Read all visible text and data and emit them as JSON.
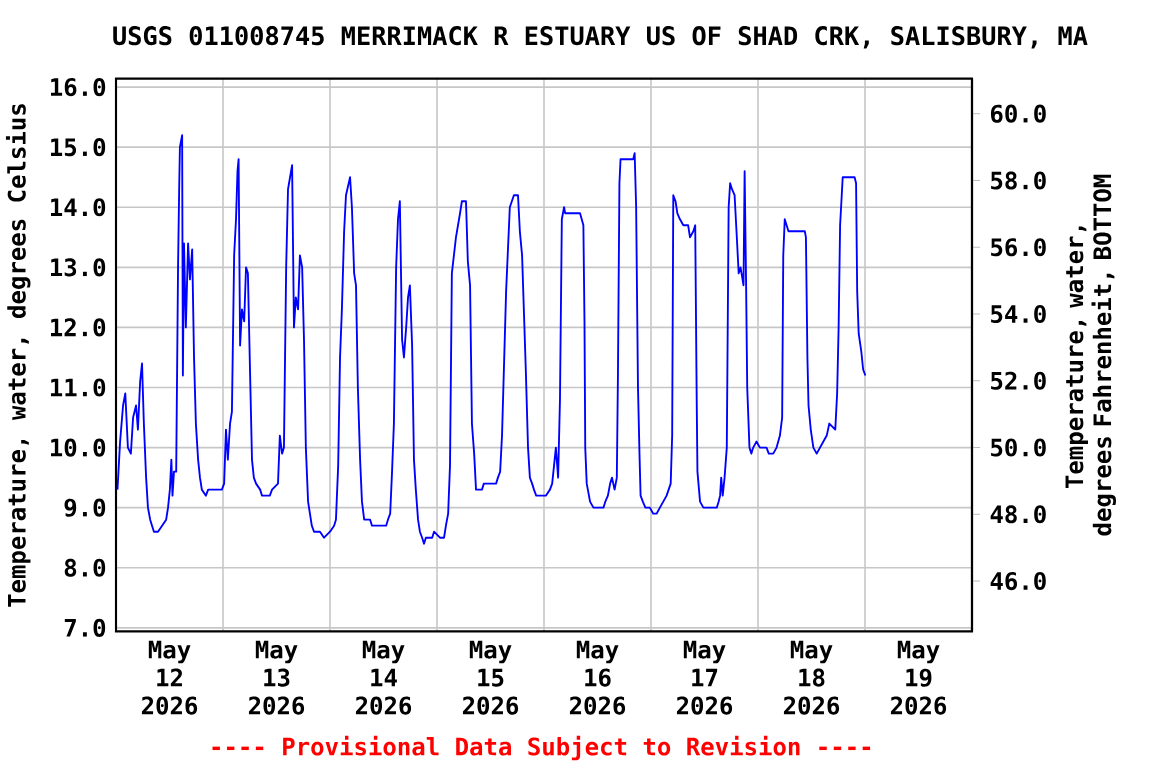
{
  "chart_data": {
    "type": "line",
    "title": "USGS 011008745 MERRIMACK R ESTUARY US OF SHAD CRK, SALISBURY, MA",
    "ylabel": "Temperature, water, degrees Celsius",
    "y2label": "Temperature, water, degrees Fahrenheit, BOTTOM",
    "annotations": [
      "---- Provisional Data Subject to Revision ----"
    ],
    "color": "#0000ff",
    "line_style": "solid",
    "grid": true,
    "xlim": [
      "2026-05-12T00:00",
      "2026-05-20T00:00"
    ],
    "xticks": [
      {
        "value": "2026-05-12T12:00",
        "label": "May 12 2026"
      },
      {
        "value": "2026-05-13T12:00",
        "label": "May 13 2026"
      },
      {
        "value": "2026-05-14T12:00",
        "label": "May 14 2026"
      },
      {
        "value": "2026-05-15T12:00",
        "label": "May 15 2026"
      },
      {
        "value": "2026-05-16T12:00",
        "label": "May 16 2026"
      },
      {
        "value": "2026-05-17T12:00",
        "label": "May 17 2026"
      },
      {
        "value": "2026-05-18T12:00",
        "label": "May 18 2026"
      },
      {
        "value": "2026-05-19T12:00",
        "label": "May 19 2026"
      },
      {
        "value": "2026-05-13T00:00",
        "label": null
      },
      {
        "value": "2026-05-14T00:00",
        "label": null
      },
      {
        "value": "2026-05-15T00:00",
        "label": null
      },
      {
        "value": "2026-05-16T00:00",
        "label": null
      },
      {
        "value": "2026-05-17T00:00",
        "label": null
      },
      {
        "value": "2026-05-18T00:00",
        "label": null
      },
      {
        "value": "2026-05-19T00:00",
        "label": null
      }
    ],
    "ylim": [
      6.94,
      16.14
    ],
    "yticks": [
      {
        "value": 7,
        "label": "7.0"
      },
      {
        "value": 8,
        "label": "8.0"
      },
      {
        "value": 9,
        "label": "9.0"
      },
      {
        "value": 10,
        "label": "10.0"
      },
      {
        "value": 11,
        "label": "11.0"
      },
      {
        "value": 12,
        "label": "12.0"
      },
      {
        "value": 13,
        "label": "13.0"
      },
      {
        "value": 14,
        "label": "14.0"
      },
      {
        "value": 15,
        "label": "15.0"
      },
      {
        "value": 16,
        "label": "16.0"
      }
    ],
    "y2lim": [
      44.49,
      61.05
    ],
    "y2ticks": [
      {
        "value": 46,
        "label": "46.0"
      },
      {
        "value": 48,
        "label": "48.0"
      },
      {
        "value": 50,
        "label": "50.0"
      },
      {
        "value": 52,
        "label": "52.0"
      },
      {
        "value": 54,
        "label": "54.0"
      },
      {
        "value": 56,
        "label": "56.0"
      },
      {
        "value": 58,
        "label": "58.0"
      },
      {
        "value": 60,
        "label": "60.0"
      }
    ],
    "x": [
      "2026-05-12T00:20",
      "2026-05-12T00:55",
      "2026-05-12T01:35",
      "2026-05-12T02:05",
      "2026-05-12T02:40",
      "2026-05-12T03:20",
      "2026-05-12T03:50",
      "2026-05-12T04:30",
      "2026-05-12T04:55",
      "2026-05-12T05:25",
      "2026-05-12T05:50",
      "2026-05-12T06:15",
      "2026-05-12T06:45",
      "2026-05-12T07:10",
      "2026-05-12T07:40",
      "2026-05-12T08:05",
      "2026-05-12T08:30",
      "2026-05-12T09:25",
      "2026-05-12T10:20",
      "2026-05-12T11:15",
      "2026-05-12T11:40",
      "2026-05-12T12:05",
      "2026-05-12T12:25",
      "2026-05-12T12:40",
      "2026-05-12T13:00",
      "2026-05-12T13:30",
      "2026-05-12T13:55",
      "2026-05-12T14:10",
      "2026-05-12T14:20",
      "2026-05-12T14:50",
      "2026-05-12T15:00",
      "2026-05-12T15:15",
      "2026-05-12T15:40",
      "2026-05-12T16:10",
      "2026-05-12T16:35",
      "2026-05-12T17:05",
      "2026-05-12T17:30",
      "2026-05-12T17:55",
      "2026-05-12T18:25",
      "2026-05-12T18:50",
      "2026-05-12T19:15",
      "2026-05-12T20:10",
      "2026-05-12T20:40",
      "2026-05-12T23:45",
      "2026-05-13T00:15",
      "2026-05-13T00:40",
      "2026-05-13T01:05",
      "2026-05-13T01:35",
      "2026-05-13T02:00",
      "2026-05-13T02:30",
      "2026-05-13T02:55",
      "2026-05-13T03:15",
      "2026-05-13T03:30",
      "2026-05-13T03:50",
      "2026-05-13T04:15",
      "2026-05-13T04:45",
      "2026-05-13T05:10",
      "2026-05-13T05:35",
      "2026-05-13T06:05",
      "2026-05-13T06:30",
      "2026-05-13T06:55",
      "2026-05-13T07:25",
      "2026-05-13T08:20",
      "2026-05-13T08:45",
      "2026-05-13T10:30",
      "2026-05-13T11:00",
      "2026-05-13T12:20",
      "2026-05-13T12:45",
      "2026-05-13T13:15",
      "2026-05-13T13:40",
      "2026-05-13T14:10",
      "2026-05-13T14:35",
      "2026-05-13T15:30",
      "2026-05-13T15:55",
      "2026-05-13T16:20",
      "2026-05-13T16:50",
      "2026-05-13T17:15",
      "2026-05-13T17:45",
      "2026-05-13T18:10",
      "2026-05-13T18:35",
      "2026-05-13T19:05",
      "2026-05-13T19:30",
      "2026-05-13T19:55",
      "2026-05-13T20:25",
      "2026-05-13T21:45",
      "2026-05-13T22:40",
      "2026-05-14T00:00",
      "2026-05-14T00:55",
      "2026-05-14T01:20",
      "2026-05-14T01:50",
      "2026-05-14T02:15",
      "2026-05-14T02:40",
      "2026-05-14T03:10",
      "2026-05-14T03:35",
      "2026-05-14T04:30",
      "2026-05-14T04:55",
      "2026-05-14T05:25",
      "2026-05-14T05:50",
      "2026-05-14T06:15",
      "2026-05-14T06:45",
      "2026-05-14T07:10",
      "2026-05-14T07:40",
      "2026-05-14T09:00",
      "2026-05-14T09:25",
      "2026-05-14T12:35",
      "2026-05-14T13:00",
      "2026-05-14T13:30",
      "2026-05-14T13:55",
      "2026-05-14T14:20",
      "2026-05-14T14:50",
      "2026-05-14T15:15",
      "2026-05-14T15:40",
      "2026-05-14T16:10",
      "2026-05-14T16:35",
      "2026-05-14T17:05",
      "2026-05-14T17:30",
      "2026-05-14T17:55",
      "2026-05-14T18:25",
      "2026-05-14T18:50",
      "2026-05-14T19:15",
      "2026-05-14T19:45",
      "2026-05-14T20:10",
      "2026-05-14T20:40",
      "2026-05-14T21:05",
      "2026-05-14T21:30",
      "2026-05-14T22:55",
      "2026-05-14T23:20",
      "2026-05-15T00:40",
      "2026-05-15T01:35",
      "2026-05-15T02:00",
      "2026-05-15T02:30",
      "2026-05-15T02:55",
      "2026-05-15T03:20",
      "2026-05-15T04:15",
      "2026-05-15T05:10",
      "2026-05-15T05:35",
      "2026-05-15T06:30",
      "2026-05-15T06:55",
      "2026-05-15T07:25",
      "2026-05-15T07:50",
      "2026-05-15T08:20",
      "2026-05-15T08:45",
      "2026-05-15T10:05",
      "2026-05-15T10:30",
      "2026-05-15T13:15",
      "2026-05-15T13:40",
      "2026-05-15T14:10",
      "2026-05-15T14:35",
      "2026-05-15T15:30",
      "2026-05-15T16:20",
      "2026-05-15T17:15",
      "2026-05-15T18:10",
      "2026-05-15T18:35",
      "2026-05-15T19:05",
      "2026-05-15T19:55",
      "2026-05-15T20:25",
      "2026-05-15T20:50",
      "2026-05-15T21:20",
      "2026-05-15T21:45",
      "2026-05-15T22:15",
      "2026-05-16T00:25",
      "2026-05-16T01:20",
      "2026-05-16T01:50",
      "2026-05-16T02:15",
      "2026-05-16T02:40",
      "2026-05-16T03:10",
      "2026-05-16T03:35",
      "2026-05-16T04:00",
      "2026-05-16T04:30",
      "2026-05-16T04:45",
      "2026-05-16T08:05",
      "2026-05-16T08:50",
      "2026-05-16T09:05",
      "2026-05-16T09:15",
      "2026-05-16T09:35",
      "2026-05-16T10:20",
      "2026-05-16T11:05",
      "2026-05-16T13:20",
      "2026-05-16T13:45",
      "2026-05-16T14:20",
      "2026-05-16T14:50",
      "2026-05-16T15:15",
      "2026-05-16T15:50",
      "2026-05-16T16:20",
      "2026-05-16T16:35",
      "2026-05-16T16:55",
      "2026-05-16T17:10",
      "2026-05-16T20:00",
      "2026-05-16T20:20",
      "2026-05-16T20:40",
      "2026-05-16T21:05",
      "2026-05-16T21:25",
      "2026-05-16T21:40",
      "2026-05-16T22:10",
      "2026-05-16T22:45",
      "2026-05-16T23:45",
      "2026-05-17T00:30",
      "2026-05-17T01:15",
      "2026-05-17T02:00",
      "2026-05-17T02:45",
      "2026-05-17T03:30",
      "2026-05-17T04:25",
      "2026-05-17T04:45",
      "2026-05-17T05:00",
      "2026-05-17T05:30",
      "2026-05-17T05:55",
      "2026-05-17T06:30",
      "2026-05-17T07:15",
      "2026-05-17T08:20",
      "2026-05-17T08:45",
      "2026-05-17T09:30",
      "2026-05-17T09:55",
      "2026-05-17T10:15",
      "2026-05-17T10:25",
      "2026-05-17T11:00",
      "2026-05-17T11:45",
      "2026-05-17T14:45",
      "2026-05-17T15:10",
      "2026-05-17T15:30",
      "2026-05-17T15:45",
      "2026-05-17T16:05",
      "2026-05-17T16:30",
      "2026-05-17T17:00",
      "2026-05-17T17:25",
      "2026-05-17T17:45",
      "2026-05-17T18:10",
      "2026-05-17T18:45",
      "2026-05-17T19:15",
      "2026-05-17T19:40",
      "2026-05-17T20:05",
      "2026-05-17T20:45",
      "2026-05-17T21:00",
      "2026-05-17T21:20",
      "2026-05-17T21:35",
      "2026-05-17T22:05",
      "2026-05-17T22:30",
      "2026-05-17T22:55",
      "2026-05-17T23:40",
      "2026-05-18T00:25",
      "2026-05-18T01:55",
      "2026-05-18T02:25",
      "2026-05-18T03:25",
      "2026-05-18T04:10",
      "2026-05-18T04:55",
      "2026-05-18T05:25",
      "2026-05-18T05:40",
      "2026-05-18T06:00",
      "2026-05-18T06:25",
      "2026-05-18T06:50",
      "2026-05-18T10:30",
      "2026-05-18T10:45",
      "2026-05-18T11:05",
      "2026-05-18T11:20",
      "2026-05-18T11:50",
      "2026-05-18T12:25",
      "2026-05-18T13:10",
      "2026-05-18T13:55",
      "2026-05-18T14:40",
      "2026-05-18T15:25",
      "2026-05-18T16:00",
      "2026-05-18T17:20",
      "2026-05-18T17:45",
      "2026-05-18T18:05",
      "2026-05-18T18:25",
      "2026-05-18T19:00",
      "2026-05-18T21:40",
      "2026-05-18T22:00",
      "2026-05-18T22:15",
      "2026-05-18T22:35",
      "2026-05-18T23:10",
      "2026-05-18T23:35",
      "2026-05-19T00:05"
    ],
    "values": [
      9.3,
      10.1,
      10.7,
      10.9,
      10.0,
      9.9,
      10.5,
      10.7,
      10.3,
      11.1,
      11.4,
      10.4,
      9.5,
      9.0,
      8.8,
      8.7,
      8.6,
      8.6,
      8.7,
      8.8,
      9.0,
      9.3,
      9.8,
      9.2,
      9.6,
      9.6,
      13.0,
      14.3,
      15.0,
      15.2,
      11.2,
      13.4,
      12.0,
      13.4,
      12.8,
      13.3,
      11.5,
      10.4,
      9.8,
      9.5,
      9.3,
      9.2,
      9.3,
      9.3,
      9.4,
      10.3,
      9.8,
      10.4,
      10.6,
      13.2,
      13.8,
      14.6,
      14.8,
      11.7,
      12.3,
      12.1,
      13.0,
      12.9,
      11.2,
      9.8,
      9.5,
      9.4,
      9.3,
      9.2,
      9.2,
      9.3,
      9.4,
      10.2,
      9.9,
      10.0,
      13.0,
      14.3,
      14.7,
      12.0,
      12.5,
      12.3,
      13.2,
      13.0,
      11.8,
      10.0,
      9.1,
      8.9,
      8.7,
      8.6,
      8.6,
      8.5,
      8.6,
      8.7,
      8.8,
      9.7,
      11.5,
      12.3,
      13.6,
      14.2,
      14.5,
      14.0,
      12.9,
      12.7,
      11.0,
      9.8,
      9.1,
      8.8,
      8.8,
      8.7,
      8.7,
      8.8,
      8.9,
      9.6,
      10.4,
      13.0,
      13.8,
      14.1,
      11.8,
      11.5,
      12.0,
      12.5,
      12.7,
      11.7,
      9.8,
      9.3,
      8.8,
      8.6,
      8.5,
      8.4,
      8.5,
      8.5,
      8.6,
      8.5,
      8.5,
      8.7,
      8.9,
      9.7,
      12.9,
      13.5,
      13.9,
      14.1,
      14.1,
      13.1,
      12.7,
      10.4,
      9.9,
      9.3,
      9.3,
      9.4,
      9.4,
      9.5,
      9.6,
      10.2,
      12.6,
      14.0,
      14.2,
      14.2,
      13.6,
      13.2,
      11.3,
      10.0,
      9.5,
      9.4,
      9.3,
      9.2,
      9.2,
      9.3,
      9.4,
      9.7,
      10.0,
      9.5,
      10.8,
      13.8,
      14.0,
      13.9,
      13.9,
      13.7,
      12.1,
      10.0,
      9.4,
      9.1,
      9.0,
      9.0,
      9.1,
      9.2,
      9.4,
      9.5,
      9.3,
      9.5,
      11.2,
      14.4,
      14.8,
      14.8,
      14.9,
      14.0,
      11.0,
      9.9,
      9.2,
      9.1,
      9.0,
      9.0,
      8.9,
      8.9,
      9.0,
      9.1,
      9.2,
      9.4,
      10.2,
      14.2,
      14.1,
      13.9,
      13.8,
      13.7,
      13.7,
      13.5,
      13.6,
      13.7,
      10.8,
      9.6,
      9.1,
      9.0,
      9.0,
      9.1,
      9.2,
      9.5,
      9.2,
      9.5,
      10.0,
      14.0,
      14.4,
      14.3,
      14.2,
      13.5,
      12.9,
      13.0,
      12.7,
      14.6,
      12.7,
      11.0,
      10.0,
      9.9,
      10.0,
      10.1,
      10.0,
      10.0,
      9.9,
      9.9,
      10.0,
      10.2,
      10.5,
      13.2,
      13.8,
      13.7,
      13.6,
      13.6,
      13.5,
      11.5,
      10.7,
      10.3,
      10.0,
      9.9,
      10.0,
      10.1,
      10.2,
      10.4,
      10.3,
      10.9,
      12.0,
      13.7,
      14.5,
      14.5,
      14.4,
      12.6,
      11.9,
      11.6,
      11.3,
      11.2
    ]
  }
}
